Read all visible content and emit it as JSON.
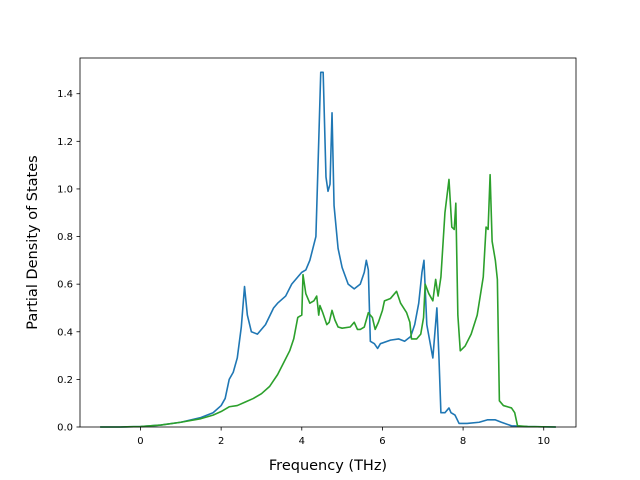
{
  "chart_data": {
    "type": "line",
    "xlabel": "Frequency (THz)",
    "ylabel": "Partial Density of States",
    "xlim": [
      -1.5,
      10.8
    ],
    "ylim": [
      0,
      1.55
    ],
    "xticks": [
      0,
      2,
      4,
      6,
      8,
      10
    ],
    "yticks": [
      0.0,
      0.2,
      0.4,
      0.6,
      0.8,
      1.0,
      1.2,
      1.4
    ],
    "grid": false,
    "series": [
      {
        "color": "#1f77b4",
        "points": [
          [
            -1.0,
            0
          ],
          [
            -0.5,
            0
          ],
          [
            0.0,
            0.002
          ],
          [
            0.5,
            0.008
          ],
          [
            1.0,
            0.02
          ],
          [
            1.5,
            0.04
          ],
          [
            1.8,
            0.06
          ],
          [
            2.0,
            0.09
          ],
          [
            2.1,
            0.12
          ],
          [
            2.2,
            0.2
          ],
          [
            2.3,
            0.23
          ],
          [
            2.4,
            0.29
          ],
          [
            2.5,
            0.42
          ],
          [
            2.58,
            0.59
          ],
          [
            2.65,
            0.47
          ],
          [
            2.75,
            0.4
          ],
          [
            2.9,
            0.39
          ],
          [
            3.1,
            0.43
          ],
          [
            3.3,
            0.5
          ],
          [
            3.4,
            0.52
          ],
          [
            3.6,
            0.55
          ],
          [
            3.75,
            0.6
          ],
          [
            3.9,
            0.63
          ],
          [
            4.0,
            0.65
          ],
          [
            4.1,
            0.66
          ],
          [
            4.2,
            0.7
          ],
          [
            4.35,
            0.8
          ],
          [
            4.42,
            1.2
          ],
          [
            4.47,
            1.49
          ],
          [
            4.53,
            1.49
          ],
          [
            4.6,
            1.05
          ],
          [
            4.65,
            0.99
          ],
          [
            4.7,
            1.02
          ],
          [
            4.75,
            1.32
          ],
          [
            4.8,
            0.93
          ],
          [
            4.9,
            0.75
          ],
          [
            5.0,
            0.67
          ],
          [
            5.15,
            0.6
          ],
          [
            5.3,
            0.58
          ],
          [
            5.45,
            0.6
          ],
          [
            5.55,
            0.65
          ],
          [
            5.6,
            0.7
          ],
          [
            5.65,
            0.66
          ],
          [
            5.7,
            0.36
          ],
          [
            5.8,
            0.35
          ],
          [
            5.88,
            0.33
          ],
          [
            5.95,
            0.35
          ],
          [
            6.2,
            0.365
          ],
          [
            6.4,
            0.37
          ],
          [
            6.55,
            0.36
          ],
          [
            6.7,
            0.38
          ],
          [
            6.8,
            0.43
          ],
          [
            6.9,
            0.52
          ],
          [
            6.98,
            0.65
          ],
          [
            7.03,
            0.7
          ],
          [
            7.1,
            0.43
          ],
          [
            7.25,
            0.29
          ],
          [
            7.35,
            0.5
          ],
          [
            7.4,
            0.3
          ],
          [
            7.45,
            0.06
          ],
          [
            7.55,
            0.06
          ],
          [
            7.65,
            0.08
          ],
          [
            7.7,
            0.06
          ],
          [
            7.8,
            0.05
          ],
          [
            7.9,
            0.015
          ],
          [
            8.1,
            0.015
          ],
          [
            8.4,
            0.02
          ],
          [
            8.6,
            0.03
          ],
          [
            8.8,
            0.03
          ],
          [
            8.95,
            0.02
          ],
          [
            9.2,
            0.005
          ],
          [
            9.6,
            0.002
          ],
          [
            10.3,
            0
          ]
        ]
      },
      {
        "color": "#2ca02c",
        "points": [
          [
            -1.0,
            0
          ],
          [
            -0.5,
            0
          ],
          [
            0.0,
            0.002
          ],
          [
            0.5,
            0.008
          ],
          [
            1.0,
            0.02
          ],
          [
            1.5,
            0.035
          ],
          [
            1.8,
            0.05
          ],
          [
            2.0,
            0.065
          ],
          [
            2.2,
            0.085
          ],
          [
            2.4,
            0.09
          ],
          [
            2.6,
            0.105
          ],
          [
            2.8,
            0.12
          ],
          [
            3.0,
            0.14
          ],
          [
            3.2,
            0.17
          ],
          [
            3.4,
            0.22
          ],
          [
            3.55,
            0.27
          ],
          [
            3.7,
            0.32
          ],
          [
            3.8,
            0.37
          ],
          [
            3.9,
            0.46
          ],
          [
            4.0,
            0.47
          ],
          [
            4.03,
            0.64
          ],
          [
            4.1,
            0.56
          ],
          [
            4.2,
            0.52
          ],
          [
            4.3,
            0.53
          ],
          [
            4.37,
            0.55
          ],
          [
            4.42,
            0.47
          ],
          [
            4.45,
            0.51
          ],
          [
            4.52,
            0.48
          ],
          [
            4.62,
            0.43
          ],
          [
            4.68,
            0.44
          ],
          [
            4.75,
            0.49
          ],
          [
            4.82,
            0.45
          ],
          [
            4.9,
            0.42
          ],
          [
            5.0,
            0.415
          ],
          [
            5.2,
            0.42
          ],
          [
            5.3,
            0.44
          ],
          [
            5.38,
            0.41
          ],
          [
            5.45,
            0.41
          ],
          [
            5.55,
            0.42
          ],
          [
            5.65,
            0.48
          ],
          [
            5.75,
            0.46
          ],
          [
            5.82,
            0.41
          ],
          [
            5.9,
            0.44
          ],
          [
            6.0,
            0.49
          ],
          [
            6.05,
            0.53
          ],
          [
            6.2,
            0.54
          ],
          [
            6.35,
            0.57
          ],
          [
            6.45,
            0.52
          ],
          [
            6.6,
            0.48
          ],
          [
            6.68,
            0.44
          ],
          [
            6.72,
            0.37
          ],
          [
            6.85,
            0.37
          ],
          [
            6.95,
            0.39
          ],
          [
            7.02,
            0.46
          ],
          [
            7.06,
            0.6
          ],
          [
            7.15,
            0.56
          ],
          [
            7.25,
            0.53
          ],
          [
            7.32,
            0.62
          ],
          [
            7.38,
            0.55
          ],
          [
            7.45,
            0.63
          ],
          [
            7.55,
            0.9
          ],
          [
            7.65,
            1.04
          ],
          [
            7.72,
            0.84
          ],
          [
            7.78,
            0.83
          ],
          [
            7.82,
            0.94
          ],
          [
            7.87,
            0.47
          ],
          [
            7.93,
            0.32
          ],
          [
            8.05,
            0.34
          ],
          [
            8.2,
            0.39
          ],
          [
            8.35,
            0.47
          ],
          [
            8.5,
            0.63
          ],
          [
            8.57,
            0.84
          ],
          [
            8.62,
            0.83
          ],
          [
            8.67,
            1.06
          ],
          [
            8.72,
            0.78
          ],
          [
            8.8,
            0.7
          ],
          [
            8.85,
            0.62
          ],
          [
            8.9,
            0.11
          ],
          [
            9.0,
            0.09
          ],
          [
            9.2,
            0.08
          ],
          [
            9.28,
            0.06
          ],
          [
            9.35,
            0.005
          ],
          [
            9.6,
            0.002
          ],
          [
            10.3,
            0
          ]
        ]
      }
    ]
  }
}
